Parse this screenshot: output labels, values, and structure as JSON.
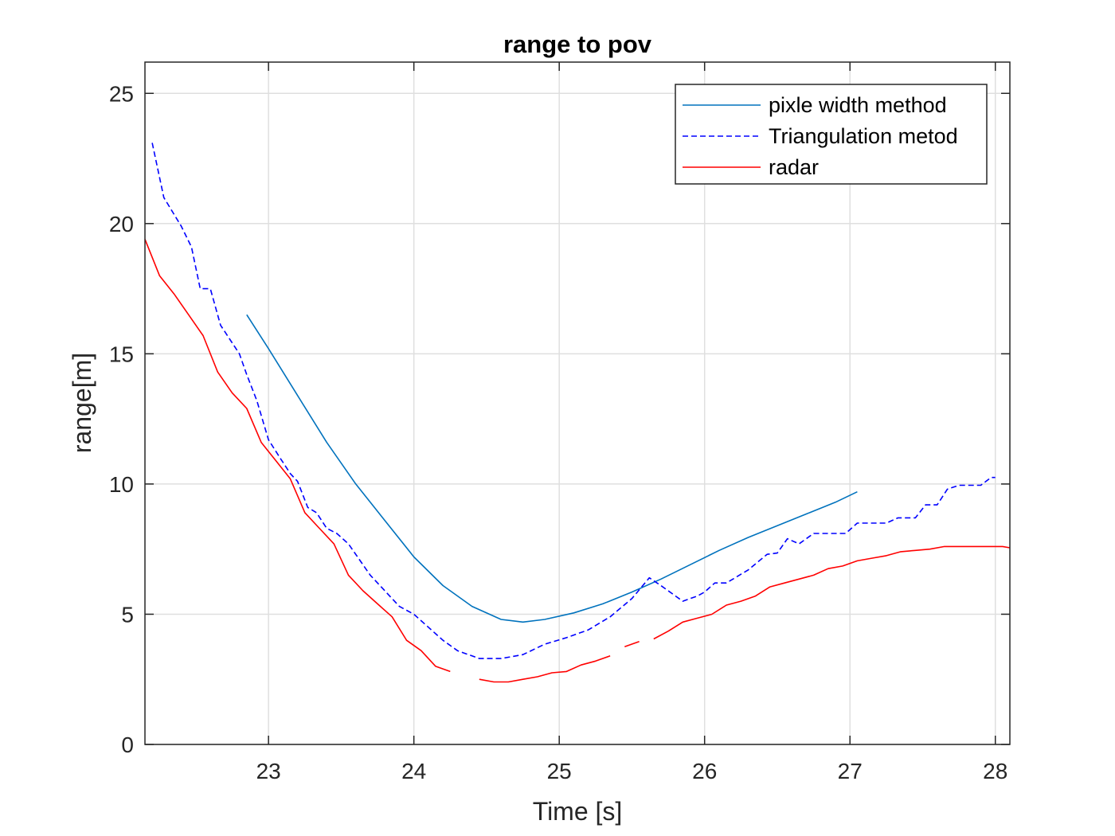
{
  "chart_data": {
    "type": "line",
    "title": "range to pov",
    "xlabel": "Time [s]",
    "ylabel": "range[m]",
    "xlim": [
      22.15,
      28.1
    ],
    "ylim": [
      0,
      26.2
    ],
    "xticks": [
      23,
      24,
      25,
      26,
      27,
      28
    ],
    "yticks": [
      0,
      5,
      10,
      15,
      20,
      25
    ],
    "grid": true,
    "legend_position": "top-right",
    "series": [
      {
        "name": "pixle width method",
        "color": "#0072BD",
        "style": "solid",
        "segments": [
          [
            [
              22.85,
              16.5
            ],
            [
              23.0,
              15.2
            ],
            [
              23.2,
              13.4
            ],
            [
              23.4,
              11.6
            ],
            [
              23.6,
              10.0
            ],
            [
              23.8,
              8.6
            ],
            [
              24.0,
              7.2
            ],
            [
              24.2,
              6.1
            ],
            [
              24.4,
              5.3
            ],
            [
              24.6,
              4.8
            ],
            [
              24.75,
              4.7
            ],
            [
              24.9,
              4.8
            ],
            [
              25.1,
              5.05
            ],
            [
              25.3,
              5.4
            ],
            [
              25.5,
              5.85
            ],
            [
              25.7,
              6.35
            ],
            [
              25.9,
              6.9
            ],
            [
              26.1,
              7.45
            ],
            [
              26.3,
              7.95
            ],
            [
              26.5,
              8.4
            ],
            [
              26.7,
              8.85
            ],
            [
              26.9,
              9.3
            ],
            [
              27.05,
              9.7
            ]
          ]
        ]
      },
      {
        "name": "Triangulation metod",
        "color": "#0000FF",
        "style": "dashed",
        "segments": [
          [
            [
              22.2,
              23.1
            ],
            [
              22.28,
              21.0
            ],
            [
              22.4,
              19.9
            ],
            [
              22.47,
              19.1
            ],
            [
              22.53,
              17.5
            ],
            [
              22.6,
              17.5
            ],
            [
              22.67,
              16.1
            ],
            [
              22.8,
              15.0
            ],
            [
              22.85,
              14.2
            ],
            [
              22.92,
              13.2
            ],
            [
              23.0,
              11.7
            ],
            [
              23.08,
              11.0
            ],
            [
              23.15,
              10.4
            ],
            [
              23.2,
              10.1
            ],
            [
              23.27,
              9.1
            ],
            [
              23.33,
              8.9
            ],
            [
              23.4,
              8.3
            ],
            [
              23.47,
              8.1
            ],
            [
              23.55,
              7.7
            ],
            [
              23.7,
              6.5
            ],
            [
              23.8,
              5.9
            ],
            [
              23.9,
              5.3
            ],
            [
              24.0,
              5.0
            ],
            [
              24.1,
              4.5
            ],
            [
              24.2,
              4.0
            ],
            [
              24.3,
              3.6
            ],
            [
              24.45,
              3.3
            ],
            [
              24.6,
              3.3
            ],
            [
              24.75,
              3.45
            ],
            [
              24.9,
              3.85
            ],
            [
              25.05,
              4.1
            ],
            [
              25.2,
              4.4
            ],
            [
              25.35,
              4.9
            ],
            [
              25.5,
              5.6
            ],
            [
              25.62,
              6.4
            ],
            [
              25.7,
              6.1
            ],
            [
              25.85,
              5.5
            ],
            [
              25.95,
              5.7
            ],
            [
              26.0,
              5.85
            ],
            [
              26.07,
              6.2
            ],
            [
              26.15,
              6.2
            ],
            [
              26.3,
              6.7
            ],
            [
              26.43,
              7.3
            ],
            [
              26.5,
              7.35
            ],
            [
              26.57,
              7.9
            ],
            [
              26.65,
              7.7
            ],
            [
              26.75,
              8.1
            ],
            [
              26.9,
              8.1
            ],
            [
              26.97,
              8.1
            ],
            [
              27.05,
              8.5
            ],
            [
              27.25,
              8.5
            ],
            [
              27.33,
              8.7
            ],
            [
              27.45,
              8.7
            ],
            [
              27.52,
              9.2
            ],
            [
              27.6,
              9.2
            ],
            [
              27.67,
              9.8
            ],
            [
              27.75,
              9.95
            ],
            [
              27.9,
              9.95
            ],
            [
              27.97,
              10.25
            ],
            [
              28.0,
              10.25
            ]
          ]
        ]
      },
      {
        "name": "radar",
        "color": "#FF0000",
        "style": "solid",
        "segments": [
          [
            [
              22.15,
              19.4
            ],
            [
              22.25,
              18.0
            ],
            [
              22.35,
              17.3
            ],
            [
              22.45,
              16.5
            ],
            [
              22.55,
              15.7
            ],
            [
              22.65,
              14.3
            ],
            [
              22.75,
              13.5
            ],
            [
              22.85,
              12.9
            ],
            [
              22.95,
              11.6
            ],
            [
              23.05,
              10.9
            ],
            [
              23.15,
              10.2
            ],
            [
              23.25,
              8.9
            ],
            [
              23.35,
              8.3
            ],
            [
              23.45,
              7.7
            ],
            [
              23.55,
              6.5
            ],
            [
              23.65,
              5.9
            ],
            [
              23.75,
              5.4
            ],
            [
              23.85,
              4.9
            ],
            [
              23.95,
              4.0
            ],
            [
              24.05,
              3.6
            ],
            [
              24.15,
              3.0
            ],
            [
              24.25,
              2.8
            ]
          ],
          [
            [
              24.45,
              2.5
            ],
            [
              24.55,
              2.4
            ],
            [
              24.65,
              2.4
            ],
            [
              24.75,
              2.5
            ],
            [
              24.85,
              2.6
            ],
            [
              24.95,
              2.75
            ],
            [
              25.05,
              2.8
            ],
            [
              25.15,
              3.05
            ],
            [
              25.25,
              3.2
            ],
            [
              25.35,
              3.4
            ]
          ],
          [
            [
              25.45,
              3.75
            ],
            [
              25.55,
              3.95
            ]
          ],
          [
            [
              25.65,
              4.05
            ],
            [
              25.75,
              4.35
            ],
            [
              25.85,
              4.7
            ],
            [
              25.95,
              4.85
            ],
            [
              26.05,
              5.0
            ],
            [
              26.15,
              5.35
            ],
            [
              26.25,
              5.5
            ],
            [
              26.35,
              5.7
            ],
            [
              26.45,
              6.05
            ],
            [
              26.55,
              6.2
            ],
            [
              26.65,
              6.35
            ],
            [
              26.75,
              6.5
            ],
            [
              26.85,
              6.75
            ],
            [
              26.95,
              6.85
            ],
            [
              27.05,
              7.05
            ],
            [
              27.15,
              7.15
            ],
            [
              27.25,
              7.25
            ],
            [
              27.35,
              7.4
            ],
            [
              27.45,
              7.45
            ],
            [
              27.55,
              7.5
            ],
            [
              27.65,
              7.6
            ],
            [
              27.75,
              7.6
            ],
            [
              27.85,
              7.6
            ],
            [
              27.95,
              7.6
            ],
            [
              28.05,
              7.6
            ],
            [
              28.1,
              7.55
            ]
          ]
        ]
      }
    ]
  }
}
